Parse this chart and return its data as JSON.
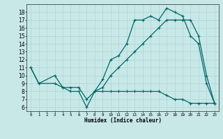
{
  "title": "",
  "xlabel": "Humidex (Indice chaleur)",
  "bg_color": "#c8e8e8",
  "grid_color": "#b0d8d8",
  "line_color": "#006666",
  "xlim": [
    -0.5,
    23.5
  ],
  "ylim": [
    5.5,
    19.0
  ],
  "xticks": [
    0,
    1,
    2,
    3,
    4,
    5,
    6,
    7,
    8,
    9,
    10,
    11,
    12,
    13,
    14,
    15,
    16,
    17,
    18,
    19,
    20,
    21,
    22,
    23
  ],
  "yticks": [
    6,
    7,
    8,
    9,
    10,
    11,
    12,
    13,
    14,
    15,
    16,
    17,
    18
  ],
  "series": [
    {
      "x": [
        0,
        1,
        3,
        4,
        5,
        6,
        7,
        8,
        9,
        10,
        11,
        12,
        13,
        14,
        15,
        16,
        17,
        18,
        19,
        20,
        21,
        22,
        23
      ],
      "y": [
        11,
        9,
        10,
        8.5,
        8.0,
        8.0,
        6.0,
        8.0,
        9.5,
        12.0,
        12.5,
        14.0,
        17.0,
        17.0,
        17.5,
        17.0,
        18.5,
        18.0,
        17.5,
        15.0,
        14.0,
        9.0,
        6.5
      ]
    },
    {
      "x": [
        0,
        1,
        3,
        4,
        5,
        6,
        7,
        8,
        9,
        10,
        11,
        12,
        13,
        14,
        15,
        16,
        17,
        18,
        19,
        20,
        21,
        22,
        23
      ],
      "y": [
        11,
        9,
        9.0,
        8.5,
        8.5,
        8.5,
        7.0,
        8.0,
        8.5,
        10.0,
        11.0,
        12.0,
        13.0,
        14.0,
        15.0,
        16.0,
        17.0,
        17.0,
        17.0,
        17.0,
        15.0,
        10.0,
        6.5
      ]
    },
    {
      "x": [
        8,
        9,
        10,
        11,
        12,
        13,
        14,
        15,
        16,
        17,
        18,
        19,
        20,
        21,
        22,
        23
      ],
      "y": [
        8.0,
        8.0,
        8.0,
        8.0,
        8.0,
        8.0,
        8.0,
        8.0,
        8.0,
        7.5,
        7.0,
        7.0,
        6.5,
        6.5,
        6.5,
        6.5
      ]
    }
  ]
}
